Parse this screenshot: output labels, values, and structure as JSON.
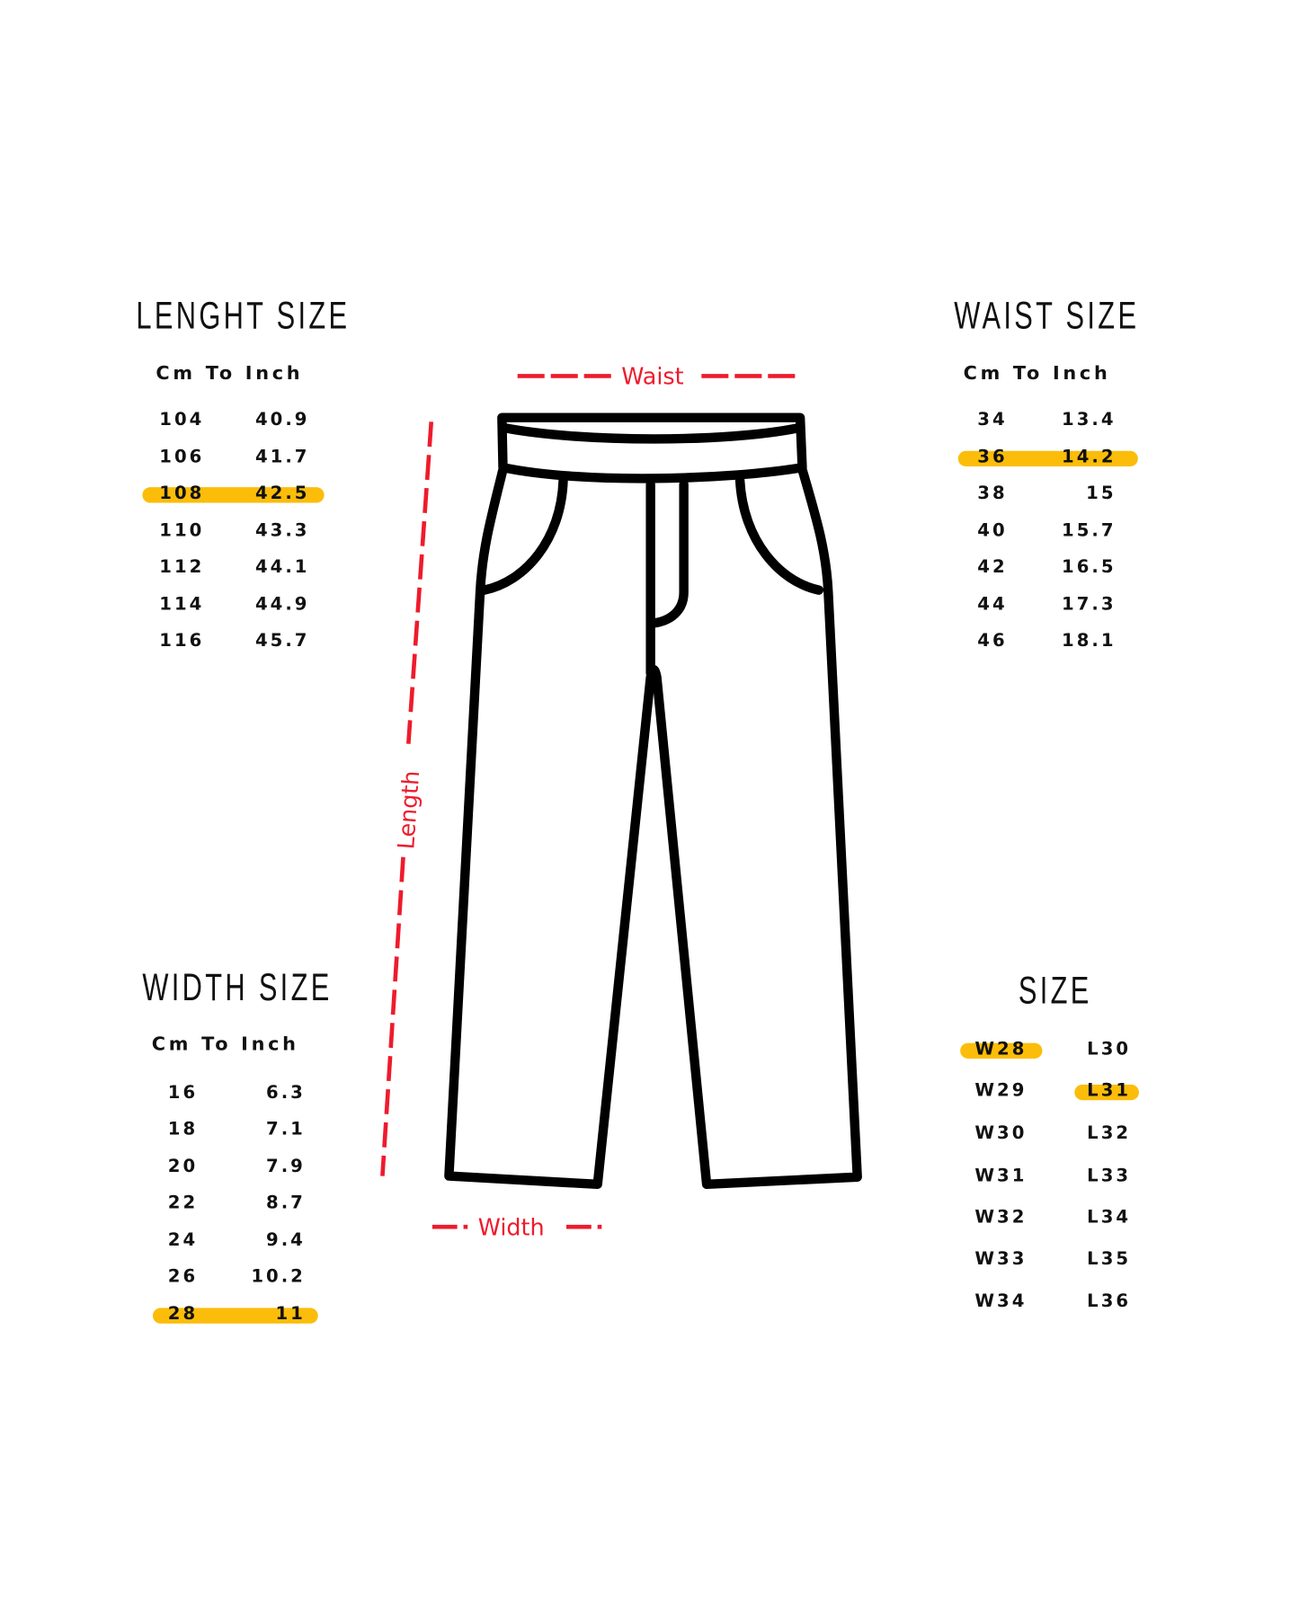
{
  "length_table": {
    "title": "LENGHT SIZE",
    "subtitle": "Cm To Inch",
    "rows": [
      [
        "104",
        "40.9"
      ],
      [
        "106",
        "41.7"
      ],
      [
        "108",
        "42.5"
      ],
      [
        "110",
        "43.3"
      ],
      [
        "112",
        "44.1"
      ],
      [
        "114",
        "44.9"
      ],
      [
        "116",
        "45.7"
      ]
    ],
    "highlighted_row": 2
  },
  "waist_table": {
    "title": "WAIST SIZE",
    "subtitle": "Cm To Inch",
    "rows": [
      [
        "34",
        "13.4"
      ],
      [
        "36",
        "14.2"
      ],
      [
        "38",
        "15"
      ],
      [
        "40",
        "15.7"
      ],
      [
        "42",
        "16.5"
      ],
      [
        "44",
        "17.3"
      ],
      [
        "46",
        "18.1"
      ]
    ],
    "highlighted_row": 1
  },
  "width_table": {
    "title": "WIDTH SIZE",
    "subtitle": "Cm To Inch",
    "rows": [
      [
        "16",
        "6.3"
      ],
      [
        "18",
        "7.1"
      ],
      [
        "20",
        "7.9"
      ],
      [
        "22",
        "8.7"
      ],
      [
        "24",
        "9.4"
      ],
      [
        "26",
        "10.2"
      ],
      [
        "28",
        "11"
      ]
    ],
    "highlighted_row": 6
  },
  "size_table": {
    "title": "SIZE",
    "rows": [
      [
        "W28",
        "L30"
      ],
      [
        "W29",
        "L31"
      ],
      [
        "W30",
        "L32"
      ],
      [
        "W31",
        "L33"
      ],
      [
        "W32",
        "L34"
      ],
      [
        "W33",
        "L35"
      ],
      [
        "W34",
        "L36"
      ]
    ],
    "highlighted_waist": "W28",
    "highlighted_length": "L31"
  },
  "diagram": {
    "waist_label": "Waist",
    "length_label": "Length",
    "width_label": "Width",
    "icon": "pants-icon"
  },
  "colors": {
    "highlight": "#fbbd0a",
    "measure": "#ee1b2c",
    "text": "#111111"
  }
}
